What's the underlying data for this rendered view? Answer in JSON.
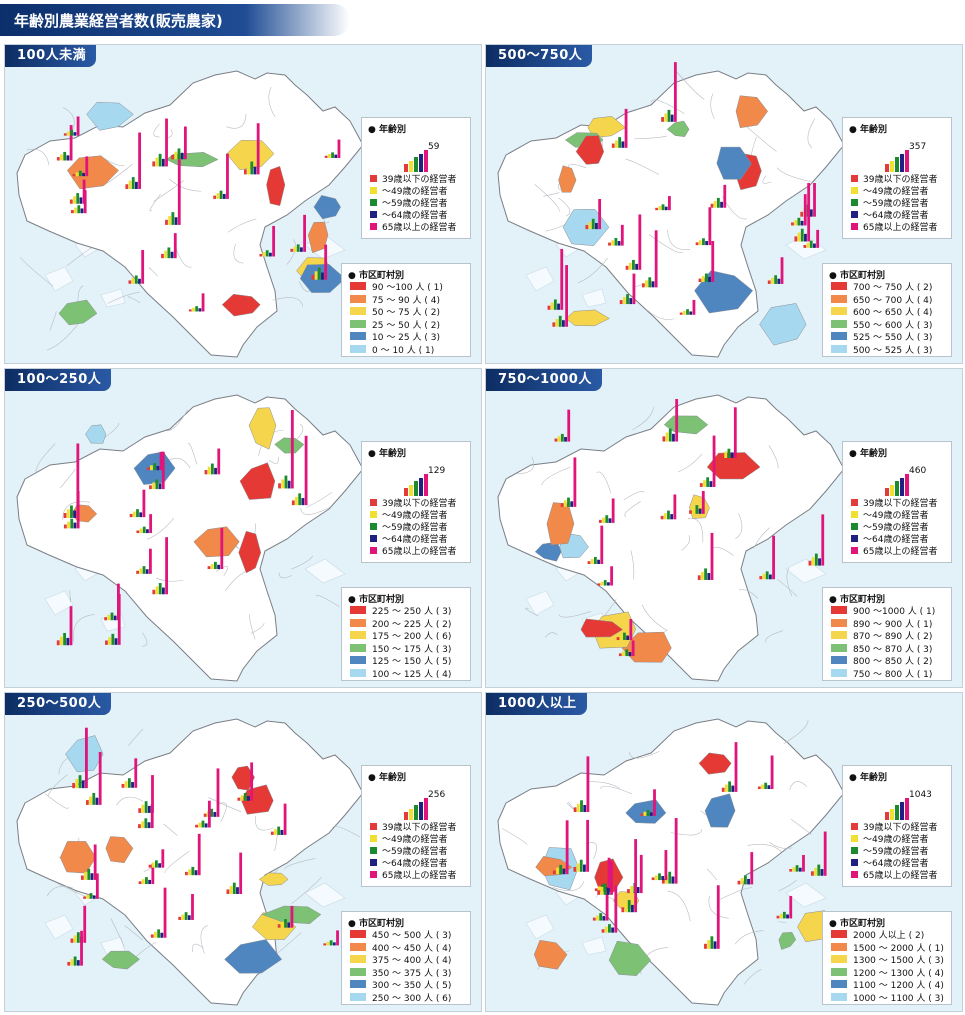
{
  "page_title": "年齢別農業経営者数(販売農家)",
  "age_legend": {
    "title": "年齢別",
    "items": [
      {
        "label": "39歳以下の経営者",
        "color": "#e33b3b"
      },
      {
        "label": "～49歳の経営者",
        "color": "#f0e030"
      },
      {
        "label": "～59歳の経営者",
        "color": "#1c8a2e"
      },
      {
        "label": "～64歳の経営者",
        "color": "#202080"
      },
      {
        "label": "65歳以上の経営者",
        "color": "#e0147a"
      }
    ]
  },
  "range_legend_title": "市区町村別",
  "range_colors": [
    "#e53935",
    "#f0894a",
    "#f5d54b",
    "#7cc174",
    "#4f86c0",
    "#a6d8ef"
  ],
  "panels": [
    {
      "title": "100人未満",
      "sample_total": "59",
      "ranges": [
        {
          "label": "90 ～100 人",
          "count": "( 1)"
        },
        {
          "label": "75 ～ 90 人",
          "count": "( 4)"
        },
        {
          "label": "50 ～ 75 人",
          "count": "( 2)"
        },
        {
          "label": "25 ～ 50 人",
          "count": "( 2)"
        },
        {
          "label": "10 ～ 25 人",
          "count": "( 3)"
        },
        {
          "label": "0 ～ 10 人",
          "count": "( 1)"
        }
      ]
    },
    {
      "title": "500～750人",
      "sample_total": "357",
      "ranges": [
        {
          "label": "700 ～ 750 人",
          "count": "( 2)"
        },
        {
          "label": "650 ～ 700 人",
          "count": "( 4)"
        },
        {
          "label": "600 ～ 650 人",
          "count": "( 4)"
        },
        {
          "label": "550 ～ 600 人",
          "count": "( 3)"
        },
        {
          "label": "525 ～ 550 人",
          "count": "( 3)"
        },
        {
          "label": "500 ～ 525 人",
          "count": "( 3)"
        }
      ]
    },
    {
      "title": "100～250人",
      "sample_total": "129",
      "ranges": [
        {
          "label": "225 ～ 250 人",
          "count": "( 3)"
        },
        {
          "label": "200 ～ 225 人",
          "count": "( 2)"
        },
        {
          "label": "175 ～ 200 人",
          "count": "( 6)"
        },
        {
          "label": "150 ～ 175 人",
          "count": "( 3)"
        },
        {
          "label": "125 ～ 150 人",
          "count": "( 5)"
        },
        {
          "label": "100 ～ 125 人",
          "count": "( 4)"
        }
      ]
    },
    {
      "title": "750～1000人",
      "sample_total": "460",
      "ranges": [
        {
          "label": "900 ～1000 人",
          "count": "( 1)"
        },
        {
          "label": "890 ～ 900 人",
          "count": "( 1)"
        },
        {
          "label": "870 ～ 890 人",
          "count": "( 2)"
        },
        {
          "label": "850 ～ 870 人",
          "count": "( 3)"
        },
        {
          "label": "800 ～ 850 人",
          "count": "( 2)"
        },
        {
          "label": "750 ～ 800 人",
          "count": "( 1)"
        }
      ]
    },
    {
      "title": "250～500人",
      "sample_total": "256",
      "ranges": [
        {
          "label": "450 ～ 500 人",
          "count": "( 3)"
        },
        {
          "label": "400 ～ 450 人",
          "count": "( 4)"
        },
        {
          "label": "375 ～ 400 人",
          "count": "( 4)"
        },
        {
          "label": "350 ～ 375 人",
          "count": "( 3)"
        },
        {
          "label": "300 ～ 350 人",
          "count": "( 5)"
        },
        {
          "label": "250 ～ 300 人",
          "count": "( 6)"
        }
      ]
    },
    {
      "title": "1000人以上",
      "sample_total": "1043",
      "ranges": [
        {
          "label": "2000 人以上",
          "count": "( 2)"
        },
        {
          "label": "1500 ～ 2000 人",
          "count": "( 1)"
        },
        {
          "label": "1300 ～ 1500 人",
          "count": "( 3)"
        },
        {
          "label": "1200 ～ 1300 人",
          "count": "( 4)"
        },
        {
          "label": "1100 ～ 1200 人",
          "count": "( 4)"
        },
        {
          "label": "1000 ～ 1100 人",
          "count": "( 3)"
        }
      ]
    }
  ]
}
